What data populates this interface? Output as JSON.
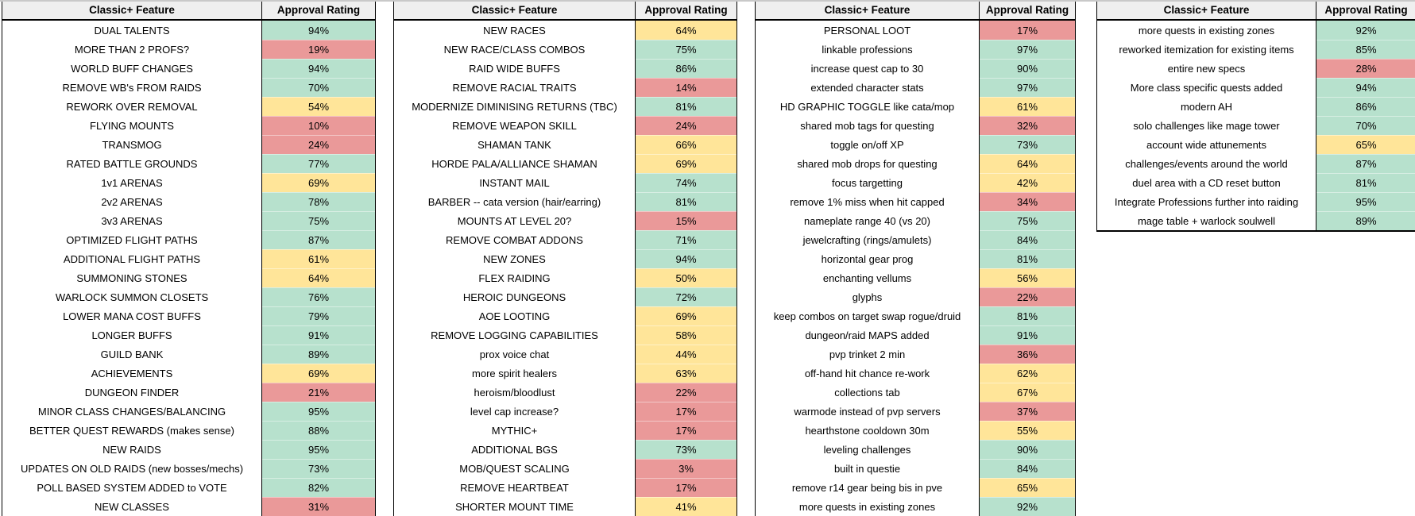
{
  "colors": {
    "green": "#b7e1cd",
    "yellow": "#ffe599",
    "red": "#ea9999",
    "header_bg": "#efefef",
    "border": "#000000",
    "top_gridline": "#c9c9c9",
    "rules": {
      "green_min": 70,
      "yellow_min": 40
    }
  },
  "tables": [
    {
      "feature_header": "Classic+ Feature",
      "rating_header": "Approval Rating",
      "rows": [
        {
          "feature": "DUAL TALENTS",
          "rating": "94%"
        },
        {
          "feature": "MORE THAN 2 PROFS?",
          "rating": "19%"
        },
        {
          "feature": "WORLD BUFF CHANGES",
          "rating": "94%"
        },
        {
          "feature": "REMOVE WB's FROM RAIDS",
          "rating": "70%"
        },
        {
          "feature": "REWORK OVER REMOVAL",
          "rating": "54%"
        },
        {
          "feature": "FLYING MOUNTS",
          "rating": "10%"
        },
        {
          "feature": "TRANSMOG",
          "rating": "24%"
        },
        {
          "feature": "RATED BATTLE GROUNDS",
          "rating": "77%"
        },
        {
          "feature": "1v1 ARENAS",
          "rating": "69%"
        },
        {
          "feature": "2v2 ARENAS",
          "rating": "78%"
        },
        {
          "feature": "3v3 ARENAS",
          "rating": "75%"
        },
        {
          "feature": "OPTIMIZED FLIGHT PATHS",
          "rating": "87%"
        },
        {
          "feature": "ADDITIONAL FLIGHT PATHS",
          "rating": "61%"
        },
        {
          "feature": "SUMMONING STONES",
          "rating": "64%"
        },
        {
          "feature": "WARLOCK SUMMON CLOSETS",
          "rating": "76%"
        },
        {
          "feature": "LOWER MANA COST BUFFS",
          "rating": "79%"
        },
        {
          "feature": "LONGER BUFFS",
          "rating": "91%"
        },
        {
          "feature": "GUILD BANK",
          "rating": "89%"
        },
        {
          "feature": "ACHIEVEMENTS",
          "rating": "69%"
        },
        {
          "feature": "DUNGEON FINDER",
          "rating": "21%"
        },
        {
          "feature": "MINOR CLASS CHANGES/BALANCING",
          "rating": "95%"
        },
        {
          "feature": "BETTER QUEST REWARDS (makes sense)",
          "rating": "88%"
        },
        {
          "feature": "NEW RAIDS",
          "rating": "95%"
        },
        {
          "feature": "UPDATES ON OLD RAIDS (new bosses/mechs)",
          "rating": "73%"
        },
        {
          "feature": "POLL BASED SYSTEM ADDED to VOTE",
          "rating": "82%"
        },
        {
          "feature": "NEW CLASSES",
          "rating": "31%"
        }
      ]
    },
    {
      "feature_header": "Classic+ Feature",
      "rating_header": "Approval Rating",
      "rows": [
        {
          "feature": "NEW RACES",
          "rating": "64%"
        },
        {
          "feature": "NEW RACE/CLASS COMBOS",
          "rating": "75%"
        },
        {
          "feature": "RAID WIDE BUFFS",
          "rating": "86%"
        },
        {
          "feature": "REMOVE RACIAL TRAITS",
          "rating": "14%"
        },
        {
          "feature": "MODERNIZE DIMINISING RETURNS (TBC)",
          "rating": "81%"
        },
        {
          "feature": "REMOVE WEAPON SKILL",
          "rating": "24%"
        },
        {
          "feature": "SHAMAN TANK",
          "rating": "66%"
        },
        {
          "feature": "HORDE PALA/ALLIANCE SHAMAN",
          "rating": "69%"
        },
        {
          "feature": "INSTANT MAIL",
          "rating": "74%"
        },
        {
          "feature": "BARBER -- cata version (hair/earring)",
          "rating": "81%"
        },
        {
          "feature": "MOUNTS AT LEVEL 20?",
          "rating": "15%"
        },
        {
          "feature": "REMOVE COMBAT ADDONS",
          "rating": "71%"
        },
        {
          "feature": "NEW ZONES",
          "rating": "94%"
        },
        {
          "feature": "FLEX RAIDING",
          "rating": "50%"
        },
        {
          "feature": "HEROIC DUNGEONS",
          "rating": "72%"
        },
        {
          "feature": "AOE LOOTING",
          "rating": "69%"
        },
        {
          "feature": "REMOVE LOGGING CAPABILITIES",
          "rating": "58%"
        },
        {
          "feature": "prox voice chat",
          "rating": "44%"
        },
        {
          "feature": "more spirit healers",
          "rating": "63%"
        },
        {
          "feature": "heroism/bloodlust",
          "rating": "22%"
        },
        {
          "feature": "level cap increase?",
          "rating": "17%"
        },
        {
          "feature": "MYTHIC+",
          "rating": "17%"
        },
        {
          "feature": "ADDITIONAL BGS",
          "rating": "73%"
        },
        {
          "feature": "MOB/QUEST SCALING",
          "rating": "3%"
        },
        {
          "feature": "REMOVE HEARTBEAT",
          "rating": "17%"
        },
        {
          "feature": "SHORTER MOUNT TIME",
          "rating": "41%"
        }
      ]
    },
    {
      "feature_header": "Classic+ Feature",
      "rating_header": "Approval Rating",
      "rows": [
        {
          "feature": "PERSONAL LOOT",
          "rating": "17%"
        },
        {
          "feature": "linkable professions",
          "rating": "97%"
        },
        {
          "feature": "increase quest cap to 30",
          "rating": "90%"
        },
        {
          "feature": "extended character stats",
          "rating": "97%"
        },
        {
          "feature": "HD GRAPHIC TOGGLE like cata/mop",
          "rating": "61%"
        },
        {
          "feature": "shared mob tags for questing",
          "rating": "32%"
        },
        {
          "feature": "toggle on/off XP",
          "rating": "73%"
        },
        {
          "feature": "shared mob drops for questing",
          "rating": "64%"
        },
        {
          "feature": "focus targetting",
          "rating": "42%"
        },
        {
          "feature": "remove 1% miss when hit capped",
          "rating": "34%"
        },
        {
          "feature": "nameplate range 40 (vs 20)",
          "rating": "75%"
        },
        {
          "feature": "jewelcrafting (rings/amulets)",
          "rating": "84%"
        },
        {
          "feature": "horizontal gear prog",
          "rating": "81%"
        },
        {
          "feature": "enchanting vellums",
          "rating": "56%"
        },
        {
          "feature": "glyphs",
          "rating": "22%"
        },
        {
          "feature": "keep combos on target swap rogue/druid",
          "rating": "81%"
        },
        {
          "feature": "dungeon/raid MAPS added",
          "rating": "91%"
        },
        {
          "feature": "pvp trinket 2 min",
          "rating": "36%"
        },
        {
          "feature": "off-hand hit chance re-work",
          "rating": "62%"
        },
        {
          "feature": "collections tab",
          "rating": "67%"
        },
        {
          "feature": "warmode instead of pvp servers",
          "rating": "37%"
        },
        {
          "feature": "hearthstone cooldown 30m",
          "rating": "55%"
        },
        {
          "feature": "leveling challenges",
          "rating": "90%"
        },
        {
          "feature": "built in questie",
          "rating": "84%"
        },
        {
          "feature": "remove r14 gear being bis in pve",
          "rating": "65%"
        },
        {
          "feature": "more quests in existing zones",
          "rating": "92%"
        }
      ]
    },
    {
      "feature_header": "Classic+ Feature",
      "rating_header": "Approval Rating",
      "rows": [
        {
          "feature": "more quests in existing zones",
          "rating": "92%"
        },
        {
          "feature": "reworked itemization for existing items",
          "rating": "85%"
        },
        {
          "feature": "entire new specs",
          "rating": "28%"
        },
        {
          "feature": "More class specific quests added",
          "rating": "94%"
        },
        {
          "feature": "modern AH",
          "rating": "86%"
        },
        {
          "feature": "solo challenges like mage tower",
          "rating": "70%"
        },
        {
          "feature": "account wide attunements",
          "rating": "65%"
        },
        {
          "feature": "challenges/events around the world",
          "rating": "87%"
        },
        {
          "feature": "duel area with a CD reset button",
          "rating": "81%"
        },
        {
          "feature": "Integrate Professions further into raiding",
          "rating": "95%"
        },
        {
          "feature": "mage table + warlock soulwell",
          "rating": "89%"
        }
      ]
    }
  ]
}
